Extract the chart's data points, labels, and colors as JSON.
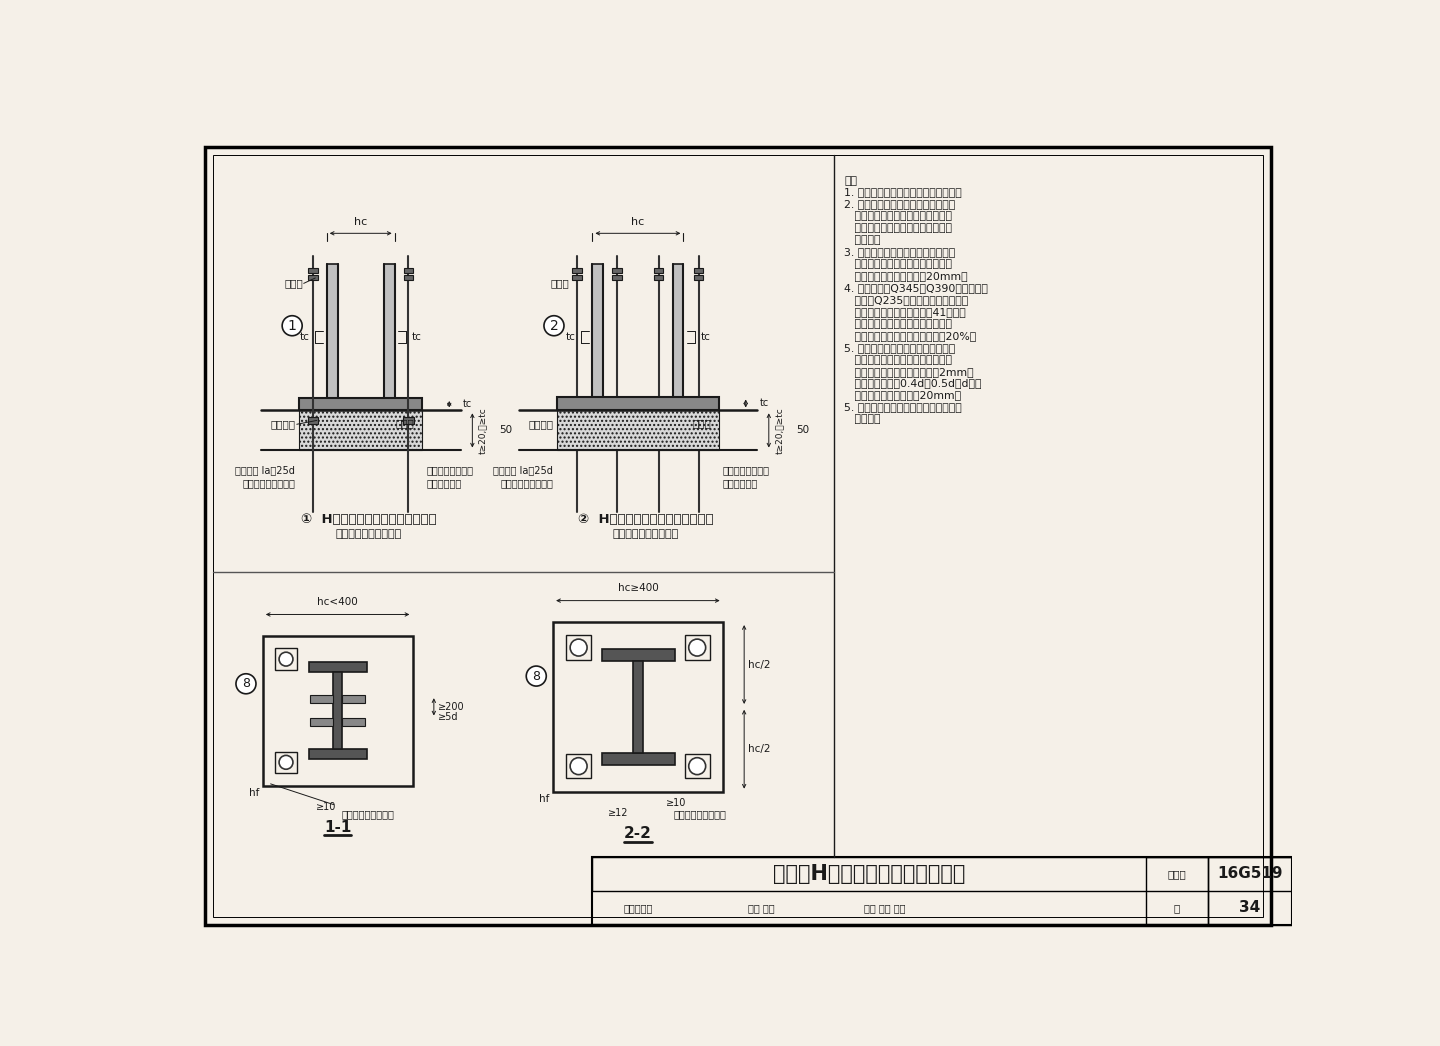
{
  "title": "外露式H型截面柱的铰接柱脚构造",
  "atlas_no": "16G519",
  "page": "34",
  "bg_color": "#f5f0e8",
  "line_color": "#1a1a1a",
  "note_lines": [
    "注：",
    "1. 本图所示柱脚均为外露式铰接柱脚。",
    "2. 柱底端宜磨平顶紧，此时柱翼缘与",
    "   底板可采用半熔透坡口对接焊缝连",
    "   接。加劲板与底板间宜采用双面角",
    "   焊缝连。",
    "3. 铰接柱脚的锚栓作为安装过程的固",
    "   定及抗拔之用，其直径应根据计算",
    "   确定，一般取直径不小于20mm。",
    "4. 锚栓宜采用Q345、Q390钢材制作，",
    "   也可用Q235钢材制作。安装时应采",
    "   用刚强的固定架定位（见第41页）。",
    "   三级及以上抗震等级时，锚栓截面",
    "   面积不宜小于钢柱下端截面积的20%。",
    "5. 柱脚底板上的锚栓孔径根据不同的",
    "   锚栓直径采取不同的孔径，锚栓螺",
    "   母下的垫板孔径取锚栓直径加2mm。",
    "   垫板厚度一般为0.4d～0.5d（d为锚",
    "   栓外径），但不宜小于20mm。",
    "5. 高层民用建筑钢结构的钢柱应采用刚",
    "   接柱脚。"
  ],
  "d1_title": "①  H形截面柱铰接柱脚构造（一）",
  "d1_sub": "（用于柱截面较小时）",
  "d2_title": "②  H形截面柱铰接柱脚构造（二）",
  "d2_sub": "（用于柱截面较大时）",
  "s1_label": "1-1",
  "s2_label": "2-2",
  "title_block_text": "外露式H型截面柱的铰接柱脚构造",
  "atlas_label": "图集号",
  "page_label": "页",
  "review_text": "审核郁银泉",
  "check_text": "校对 王喆",
  "design_text": "设计 刘岩 刘芃"
}
